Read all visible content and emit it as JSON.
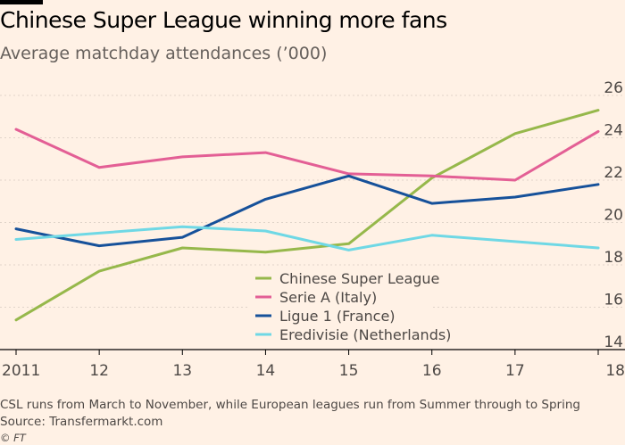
{
  "header": {
    "title": "Chinese Super League winning more fans",
    "subtitle": "Average matchday attendances (’000)"
  },
  "footer": {
    "note": "CSL runs from March to November, while European leagues run from Summer through to Spring",
    "source": "Source: Transfermarkt.com",
    "credit": "© FT"
  },
  "chart_data": {
    "type": "line",
    "title": "Chinese Super League winning more fans",
    "subtitle": "Average matchday attendances (’000)",
    "x": [
      "2011",
      "12",
      "13",
      "14",
      "15",
      "16",
      "17",
      "18"
    ],
    "ylim": [
      14,
      26
    ],
    "yticks": [
      14,
      16,
      18,
      20,
      22,
      24,
      26
    ],
    "grid": true,
    "legend_position": "bottom-center",
    "series": [
      {
        "name": "Chinese Super League",
        "color": "#96b84b",
        "values": [
          15.4,
          17.7,
          18.8,
          18.6,
          19.0,
          22.1,
          24.2,
          25.3
        ]
      },
      {
        "name": "Serie A (Italy)",
        "color": "#e35f95",
        "values": [
          24.4,
          22.6,
          23.1,
          23.3,
          22.3,
          22.2,
          22.0,
          24.3
        ]
      },
      {
        "name": "Ligue 1 (France)",
        "color": "#16519a",
        "values": [
          19.7,
          18.9,
          19.3,
          21.1,
          22.2,
          20.9,
          21.2,
          21.8
        ]
      },
      {
        "name": "Eredivisie (Netherlands)",
        "color": "#6fd8e5",
        "values": [
          19.2,
          19.5,
          19.8,
          19.6,
          18.7,
          19.4,
          19.1,
          18.8
        ]
      }
    ]
  }
}
